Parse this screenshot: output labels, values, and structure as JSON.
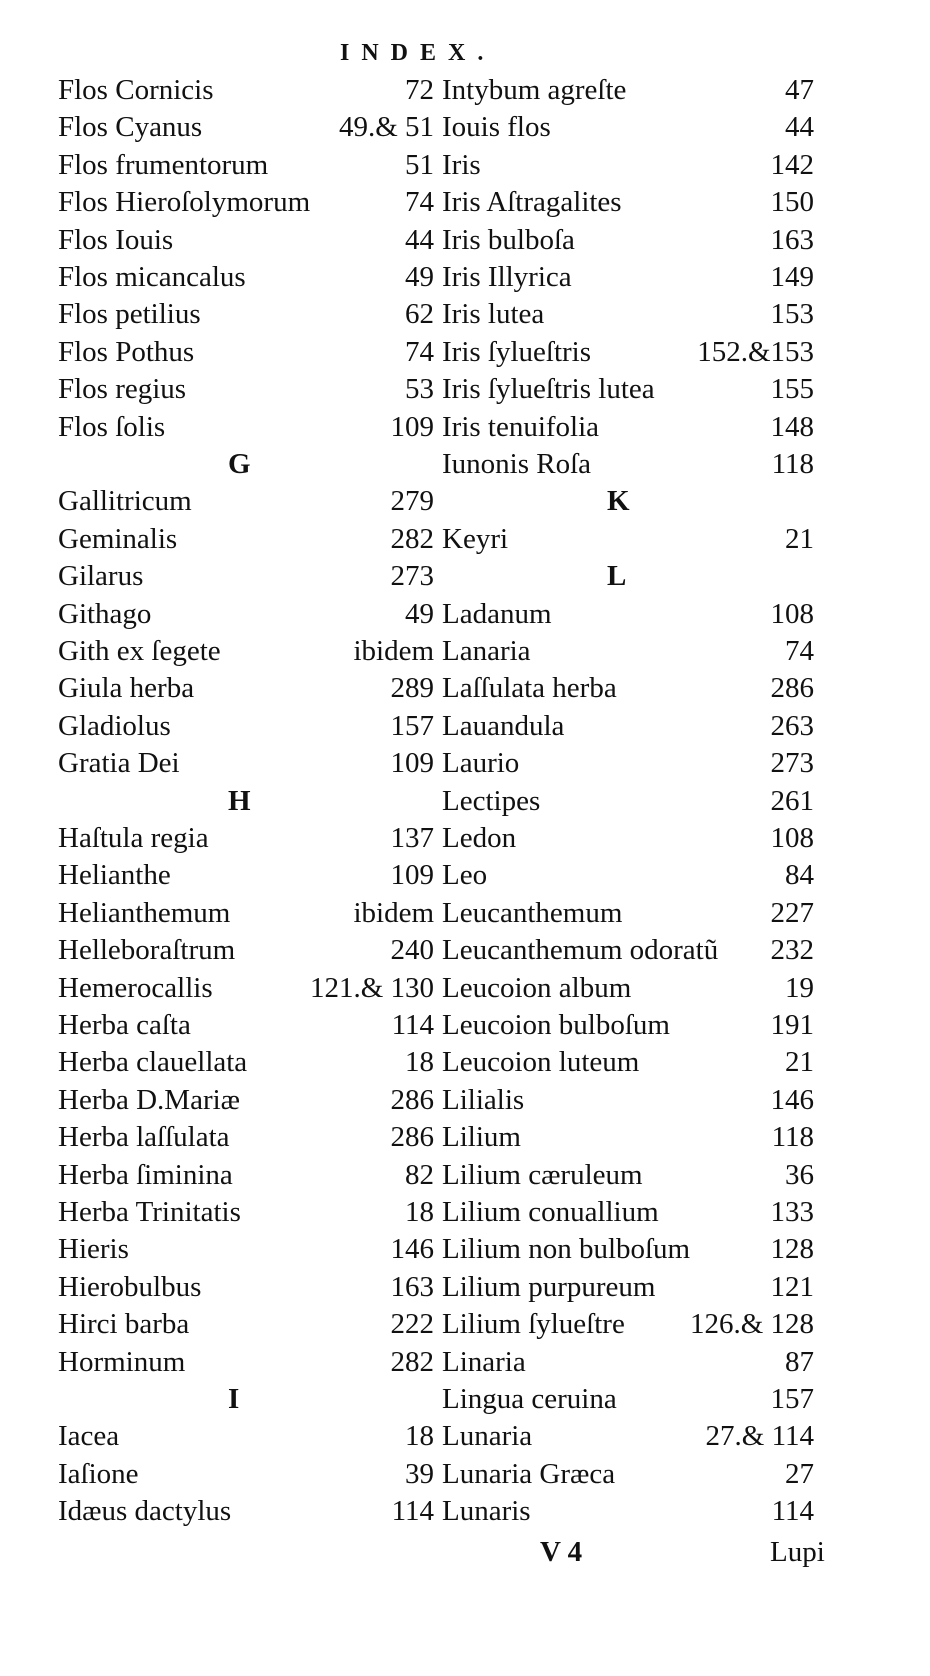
{
  "header": {
    "title": "INDEX."
  },
  "left_column": [
    {
      "name": "Flos Cornicis",
      "page": "72"
    },
    {
      "name": "Flos Cyanus",
      "page": "49.& 51"
    },
    {
      "name": "Flos frumentorum",
      "page": "51"
    },
    {
      "name": "Flos Hieroſolymorum",
      "page": "74"
    },
    {
      "name": "Flos Iouis",
      "page": "44"
    },
    {
      "name": "Flos micancalus",
      "page": "49"
    },
    {
      "name": "Flos petilius",
      "page": "62"
    },
    {
      "name": "Flos Pothus",
      "page": "74"
    },
    {
      "name": "Flos regius",
      "page": "53"
    },
    {
      "name": "Flos ſolis",
      "page": "109"
    },
    {
      "letter": "G"
    },
    {
      "name": "Gallitricum",
      "page": "279"
    },
    {
      "name": "Geminalis",
      "page": "282"
    },
    {
      "name": "Gilarus",
      "page": "273"
    },
    {
      "name": "Githago",
      "page": "49"
    },
    {
      "name": "Gith ex ſegete",
      "page": "ibidem"
    },
    {
      "name": "Giula herba",
      "page": "289"
    },
    {
      "name": "Gladiolus",
      "page": "157"
    },
    {
      "name": "Gratia Dei",
      "page": "109"
    },
    {
      "letter": "H"
    },
    {
      "name": "Haſtula regia",
      "page": "137"
    },
    {
      "name": "Helianthe",
      "page": "109"
    },
    {
      "name": "Helianthemum",
      "page": "ibidem"
    },
    {
      "name": "Helleboraſtrum",
      "page": "240"
    },
    {
      "name": "Hemerocallis",
      "page": "121.& 130"
    },
    {
      "name": "Herba caſta",
      "page": "114"
    },
    {
      "name": "Herba clauellata",
      "page": "18"
    },
    {
      "name": "Herba D.Mariæ",
      "page": "286"
    },
    {
      "name": "Herba laſſulata",
      "page": "286"
    },
    {
      "name": "Herba ſiminina",
      "page": "82"
    },
    {
      "name": "Herba Trinitatis",
      "page": "18"
    },
    {
      "name": "Hieris",
      "page": "146"
    },
    {
      "name": "Hierobulbus",
      "page": "163"
    },
    {
      "name": "Hirci barba",
      "page": "222"
    },
    {
      "name": "Horminum",
      "page": "282"
    },
    {
      "letter": "I"
    },
    {
      "name": "Iacea",
      "page": "18"
    },
    {
      "name": "Iaſione",
      "page": "39"
    },
    {
      "name": "Idæus dactylus",
      "page": "114"
    }
  ],
  "right_column": [
    {
      "name": "Intybum agreſte",
      "page": "47"
    },
    {
      "name": "Iouis flos",
      "page": "44"
    },
    {
      "name": "Iris",
      "page": "142"
    },
    {
      "name": "Iris Aſtragalites",
      "page": "150"
    },
    {
      "name": "Iris bulboſa",
      "page": "163"
    },
    {
      "name": "Iris Illyrica",
      "page": "149"
    },
    {
      "name": "Iris lutea",
      "page": "153"
    },
    {
      "name": "Iris ſylueſtris",
      "page": "152.&153"
    },
    {
      "name": "Iris ſylueſtris lutea",
      "page": "155"
    },
    {
      "name": "Iris tenuifolia",
      "page": "148"
    },
    {
      "name": "Iunonis Roſa",
      "page": "118"
    },
    {
      "letter": "K"
    },
    {
      "name": "Keyri",
      "page": "21"
    },
    {
      "letter": "L"
    },
    {
      "name": "Ladanum",
      "page": "108"
    },
    {
      "name": "Lanaria",
      "page": "74"
    },
    {
      "name": "Laſſulata herba",
      "page": "286"
    },
    {
      "name": "Lauandula",
      "page": "263"
    },
    {
      "name": "Laurio",
      "page": "273"
    },
    {
      "name": "Lectipes",
      "page": "261"
    },
    {
      "name": "Ledon",
      "page": "108"
    },
    {
      "name": "Leo",
      "page": "84"
    },
    {
      "name": "Leucanthemum",
      "page": "227"
    },
    {
      "name": "Leucanthemum odoratũ",
      "page": "232"
    },
    {
      "name": "Leucoion album",
      "page": "19"
    },
    {
      "name": "Leucoion bulboſum",
      "page": "191"
    },
    {
      "name": "Leucoion luteum",
      "page": "21"
    },
    {
      "name": "Lilialis",
      "page": "146"
    },
    {
      "name": "Lilium",
      "page": "118"
    },
    {
      "name": "Lilium cæruleum",
      "page": "36"
    },
    {
      "name": "Lilium conuallium",
      "page": "133"
    },
    {
      "name": "Lilium non bulboſum",
      "page": "128"
    },
    {
      "name": "Lilium purpureum",
      "page": "121"
    },
    {
      "name": "Lilium ſylueſtre",
      "page": "126.& 128"
    },
    {
      "name": "Linaria",
      "page": "87"
    },
    {
      "name": "Lingua ceruina",
      "page": "157"
    },
    {
      "name": "Lunaria",
      "page": "27.& 114"
    },
    {
      "name": "Lunaria Græca",
      "page": "27"
    },
    {
      "name": "Lunaris",
      "page": "114"
    }
  ],
  "footer": {
    "signature": "V 4",
    "catchword": "Lupi"
  }
}
